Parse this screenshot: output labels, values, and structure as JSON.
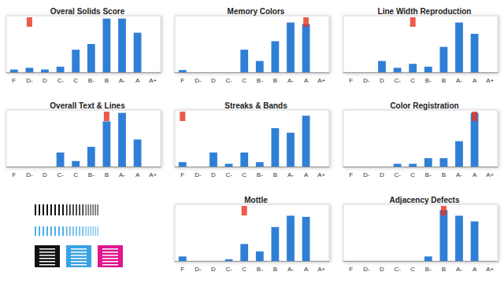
{
  "chart_data": [
    {
      "type": "bar",
      "title": "Overal Solids Score",
      "categories": [
        "F",
        "D-",
        "D",
        "C-",
        "C",
        "B-",
        "B",
        "A-",
        "A",
        "A+"
      ],
      "values": [
        5,
        8,
        5,
        10,
        40,
        50,
        95,
        95,
        70,
        0
      ],
      "color": "#2f7fd6",
      "ylim": [
        0,
        100
      ],
      "grid": false,
      "tick_labels": "x",
      "highlight": {
        "category": "D-",
        "color": "#e8321e"
      }
    },
    {
      "type": "bar",
      "title": "Memory Colors",
      "categories": [
        "F",
        "D-",
        "D",
        "C-",
        "C",
        "B-",
        "B",
        "A-",
        "A",
        "A+"
      ],
      "values": [
        4,
        0,
        0,
        0,
        40,
        20,
        55,
        88,
        85,
        0
      ],
      "color": "#2f7fd6",
      "ylim": [
        0,
        100
      ],
      "grid": false,
      "tick_labels": "x",
      "highlight": {
        "category": "A",
        "color": "#e8321e"
      }
    },
    {
      "type": "bar",
      "title": "Line Width Reproduction",
      "categories": [
        "F",
        "D-",
        "D",
        "C-",
        "C",
        "B-",
        "B",
        "A-",
        "A",
        "A+"
      ],
      "values": [
        0,
        0,
        20,
        8,
        15,
        10,
        45,
        88,
        68,
        0
      ],
      "color": "#2f7fd6",
      "ylim": [
        0,
        100
      ],
      "grid": false,
      "tick_labels": "x",
      "highlight": {
        "category": "C",
        "color": "#e8321e"
      }
    },
    {
      "type": "bar",
      "title": "Overall Text & Lines",
      "categories": [
        "F",
        "D-",
        "D",
        "C-",
        "C",
        "B-",
        "B",
        "A-",
        "A",
        "A+"
      ],
      "values": [
        0,
        0,
        0,
        25,
        10,
        35,
        80,
        95,
        48,
        0
      ],
      "color": "#2f7fd6",
      "ylim": [
        0,
        100
      ],
      "grid": false,
      "tick_labels": "x",
      "highlight": {
        "category": "B",
        "color": "#e8321e"
      }
    },
    {
      "type": "bar",
      "title": "Streaks & Bands",
      "categories": [
        "F",
        "D-",
        "D",
        "C-",
        "C",
        "B-",
        "B",
        "A-",
        "A",
        "A+"
      ],
      "values": [
        8,
        0,
        25,
        5,
        25,
        8,
        68,
        60,
        90,
        0
      ],
      "color": "#2f7fd6",
      "ylim": [
        0,
        100
      ],
      "grid": false,
      "tick_labels": "x",
      "highlight": {
        "category": "F",
        "color": "#e8321e"
      }
    },
    {
      "type": "bar",
      "title": "Color Registration",
      "categories": [
        "F",
        "D-",
        "D",
        "C-",
        "C",
        "B-",
        "B",
        "A-",
        "A",
        "A+"
      ],
      "values": [
        0,
        0,
        0,
        5,
        5,
        15,
        15,
        45,
        95,
        0
      ],
      "color": "#2f7fd6",
      "ylim": [
        0,
        100
      ],
      "grid": false,
      "tick_labels": "x",
      "highlight": {
        "category": "A",
        "color": "#e8321e"
      }
    },
    {
      "type": "bar",
      "title": "Mottle",
      "categories": [
        "F",
        "D-",
        "D",
        "C-",
        "C",
        "B-",
        "B",
        "A-",
        "A",
        "A+"
      ],
      "values": [
        8,
        0,
        0,
        3,
        30,
        17,
        60,
        80,
        78,
        0
      ],
      "color": "#2f7fd6",
      "ylim": [
        0,
        100
      ],
      "grid": false,
      "tick_labels": "x",
      "highlight": {
        "category": "C",
        "color": "#e8321e"
      }
    },
    {
      "type": "bar",
      "title": "Adjacency Defects",
      "categories": [
        "F",
        "D-",
        "D",
        "C-",
        "C",
        "B-",
        "B",
        "A-",
        "A",
        "A+"
      ],
      "values": [
        0,
        0,
        0,
        0,
        0,
        8,
        90,
        80,
        70,
        0
      ],
      "color": "#2f7fd6",
      "ylim": [
        0,
        100
      ],
      "grid": false,
      "tick_labels": "x",
      "highlight": {
        "category": "B",
        "color": "#e8321e"
      }
    }
  ]
}
